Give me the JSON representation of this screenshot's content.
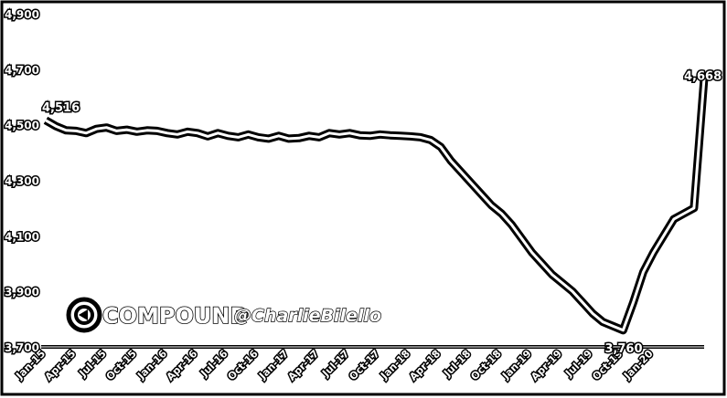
{
  "chart_data": {
    "type": "line",
    "title": "",
    "xlabel": "",
    "ylabel": "",
    "ylim": [
      3700,
      4900
    ],
    "yticks": [
      "3,700",
      "3,900",
      "4,100",
      "4,300",
      "4,500",
      "4,700",
      "4,900"
    ],
    "ytick_values": [
      3700,
      3900,
      4100,
      4300,
      4500,
      4700,
      4900
    ],
    "x_tick_labels": [
      "Jan-15",
      "Apr-15",
      "Jul-15",
      "Oct-15",
      "Jan-16",
      "Apr-16",
      "Jul-16",
      "Oct-16",
      "Jan-17",
      "Apr-17",
      "Jul-17",
      "Oct-17",
      "Jan-18",
      "Apr-18",
      "Jul-18",
      "Oct-18",
      "Jan-19",
      "Apr-19",
      "Jul-19",
      "Oct-19",
      "Jan-20"
    ],
    "grid": false,
    "series": [
      {
        "x": [
          "2015-01",
          "2015-02",
          "2015-03",
          "2015-04",
          "2015-05",
          "2015-06",
          "2015-07",
          "2015-08",
          "2015-09",
          "2015-10",
          "2015-11",
          "2015-12",
          "2016-01",
          "2016-02",
          "2016-03",
          "2016-04",
          "2016-05",
          "2016-06",
          "2016-07",
          "2016-08",
          "2016-09",
          "2016-10",
          "2016-11",
          "2016-12",
          "2017-01",
          "2017-02",
          "2017-03",
          "2017-04",
          "2017-05",
          "2017-06",
          "2017-07",
          "2017-08",
          "2017-09",
          "2017-10",
          "2017-11",
          "2017-12",
          "2018-01",
          "2018-02",
          "2018-03",
          "2018-04",
          "2018-05",
          "2018-06",
          "2018-07",
          "2018-08",
          "2018-09",
          "2018-10",
          "2018-11",
          "2018-12",
          "2019-01",
          "2019-02",
          "2019-03",
          "2019-04",
          "2019-05",
          "2019-06",
          "2019-07",
          "2019-08",
          "2019-09",
          "2019-10",
          "2019-11",
          "2019-12",
          "2020-01",
          "2020-02",
          "2020-03",
          "2020-04",
          "2020-05",
          "2020-06"
        ],
        "values": [
          4516,
          4495,
          4480,
          4478,
          4470,
          4485,
          4490,
          4478,
          4482,
          4475,
          4480,
          4478,
          4470,
          4465,
          4475,
          4470,
          4458,
          4470,
          4460,
          4455,
          4465,
          4455,
          4450,
          4460,
          4450,
          4452,
          4460,
          4455,
          4470,
          4465,
          4470,
          4462,
          4460,
          4465,
          4462,
          4460,
          4458,
          4455,
          4445,
          4420,
          4370,
          4330,
          4290,
          4250,
          4210,
          4180,
          4140,
          4090,
          4040,
          4000,
          3960,
          3930,
          3900,
          3860,
          3820,
          3790,
          3775,
          3760,
          3860,
          3970,
          4040,
          4100,
          4160,
          4180,
          4200,
          4668
        ]
      }
    ],
    "annotations": [
      "4,516",
      "3,760",
      "4,668"
    ]
  },
  "watermark": {
    "brand": "COMPOUND",
    "handle": "@CharlieBilello"
  }
}
